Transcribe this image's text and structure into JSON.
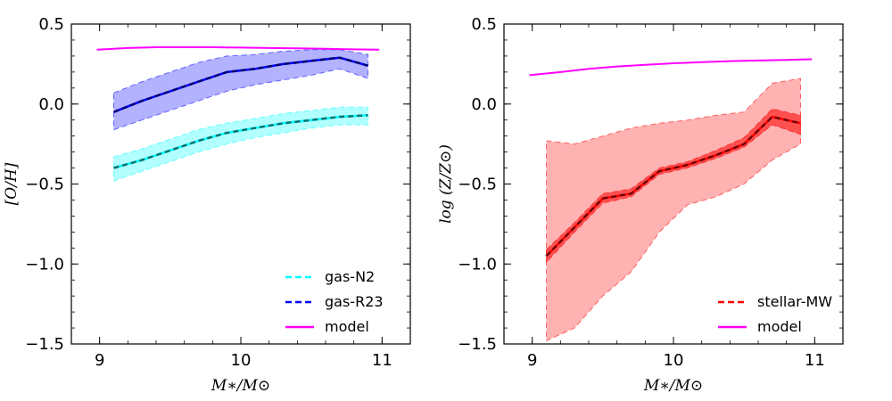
{
  "colors": {
    "gas_n2": "#00ffff",
    "gas_r23": "#0000ff",
    "model": "#ff00ff",
    "stellar_mw": "#ff0000",
    "frame": "#000000"
  },
  "chart_data": [
    {
      "type": "line",
      "xlabel": "M∗/M⊙",
      "ylabel": "[O/H]",
      "xlim": [
        8.8,
        11.2
      ],
      "ylim": [
        -1.5,
        0.5
      ],
      "x_ticks": [
        9,
        10,
        11
      ],
      "x_tick_labels": [
        "9",
        "10",
        "11"
      ],
      "y_ticks": [
        0.5,
        0.0,
        -0.5,
        -1.0,
        -1.5
      ],
      "y_tick_labels": [
        "0.5",
        "0.0",
        "−0.5",
        "−1.0",
        "−1.5"
      ],
      "grid": false,
      "legend_position": "bottom-right",
      "series": [
        {
          "name": "gas-N2",
          "style": "dashed",
          "color_key": "gas_n2",
          "x": [
            9.1,
            9.3,
            9.5,
            9.7,
            9.9,
            10.1,
            10.3,
            10.5,
            10.7,
            10.9
          ],
          "y": [
            -0.4,
            -0.35,
            -0.29,
            -0.23,
            -0.18,
            -0.15,
            -0.12,
            -0.1,
            -0.08,
            -0.07
          ],
          "band_low": [
            -0.48,
            -0.42,
            -0.36,
            -0.3,
            -0.25,
            -0.21,
            -0.18,
            -0.15,
            -0.13,
            -0.13
          ],
          "band_high": [
            -0.33,
            -0.28,
            -0.22,
            -0.16,
            -0.12,
            -0.09,
            -0.06,
            -0.04,
            -0.02,
            -0.02
          ]
        },
        {
          "name": "gas-R23",
          "style": "dashed",
          "color_key": "gas_r23",
          "x": [
            9.1,
            9.3,
            9.5,
            9.7,
            9.9,
            10.1,
            10.3,
            10.5,
            10.7,
            10.9
          ],
          "y": [
            -0.05,
            0.02,
            0.08,
            0.14,
            0.2,
            0.22,
            0.25,
            0.27,
            0.29,
            0.24
          ],
          "band_low": [
            -0.16,
            -0.1,
            -0.04,
            0.02,
            0.08,
            0.12,
            0.15,
            0.18,
            0.22,
            0.16
          ],
          "band_high": [
            0.07,
            0.14,
            0.2,
            0.26,
            0.3,
            0.31,
            0.33,
            0.34,
            0.34,
            0.31
          ]
        },
        {
          "name": "model",
          "style": "solid",
          "color_key": "model",
          "x": [
            8.98,
            9.2,
            9.4,
            9.6,
            9.8,
            10.0,
            10.2,
            10.4,
            10.6,
            10.8,
            10.98
          ],
          "y": [
            0.34,
            0.35,
            0.355,
            0.355,
            0.355,
            0.353,
            0.35,
            0.348,
            0.345,
            0.342,
            0.34
          ]
        }
      ]
    },
    {
      "type": "line",
      "xlabel": "M∗/M⊙",
      "ylabel": "log (Z/Z⊙)",
      "xlim": [
        8.8,
        11.2
      ],
      "ylim": [
        -1.5,
        0.5
      ],
      "x_ticks": [
        9,
        10,
        11
      ],
      "x_tick_labels": [
        "9",
        "10",
        "11"
      ],
      "y_ticks": [
        0.5,
        0.0,
        -0.5,
        -1.0,
        -1.5
      ],
      "y_tick_labels": [
        "0.5",
        "0.0",
        "−0.5",
        "−1.0",
        "−1.5"
      ],
      "grid": false,
      "legend_position": "bottom-right",
      "series": [
        {
          "name": "stellar-MW",
          "style": "dashed",
          "color_key": "stellar_mw",
          "x": [
            9.1,
            9.3,
            9.5,
            9.7,
            9.9,
            10.1,
            10.3,
            10.5,
            10.7,
            10.9
          ],
          "y": [
            -0.95,
            -0.77,
            -0.59,
            -0.56,
            -0.42,
            -0.38,
            -0.32,
            -0.25,
            -0.08,
            -0.12
          ],
          "band_low": [
            -0.99,
            -0.8,
            -0.62,
            -0.58,
            -0.44,
            -0.4,
            -0.34,
            -0.27,
            -0.13,
            -0.19
          ],
          "band_high": [
            -0.91,
            -0.74,
            -0.56,
            -0.53,
            -0.4,
            -0.36,
            -0.29,
            -0.21,
            -0.03,
            -0.07
          ],
          "outer_band_low": [
            -1.48,
            -1.4,
            -1.2,
            -1.05,
            -0.8,
            -0.63,
            -0.58,
            -0.5,
            -0.35,
            -0.25
          ],
          "outer_band_high": [
            -0.23,
            -0.25,
            -0.2,
            -0.15,
            -0.12,
            -0.1,
            -0.07,
            -0.05,
            0.13,
            0.16
          ]
        },
        {
          "name": "model",
          "style": "solid",
          "color_key": "model",
          "x": [
            8.98,
            9.2,
            9.4,
            9.6,
            9.8,
            10.0,
            10.2,
            10.4,
            10.6,
            10.8,
            10.98
          ],
          "y": [
            0.18,
            0.2,
            0.22,
            0.235,
            0.245,
            0.255,
            0.262,
            0.268,
            0.272,
            0.276,
            0.28
          ]
        }
      ]
    }
  ]
}
